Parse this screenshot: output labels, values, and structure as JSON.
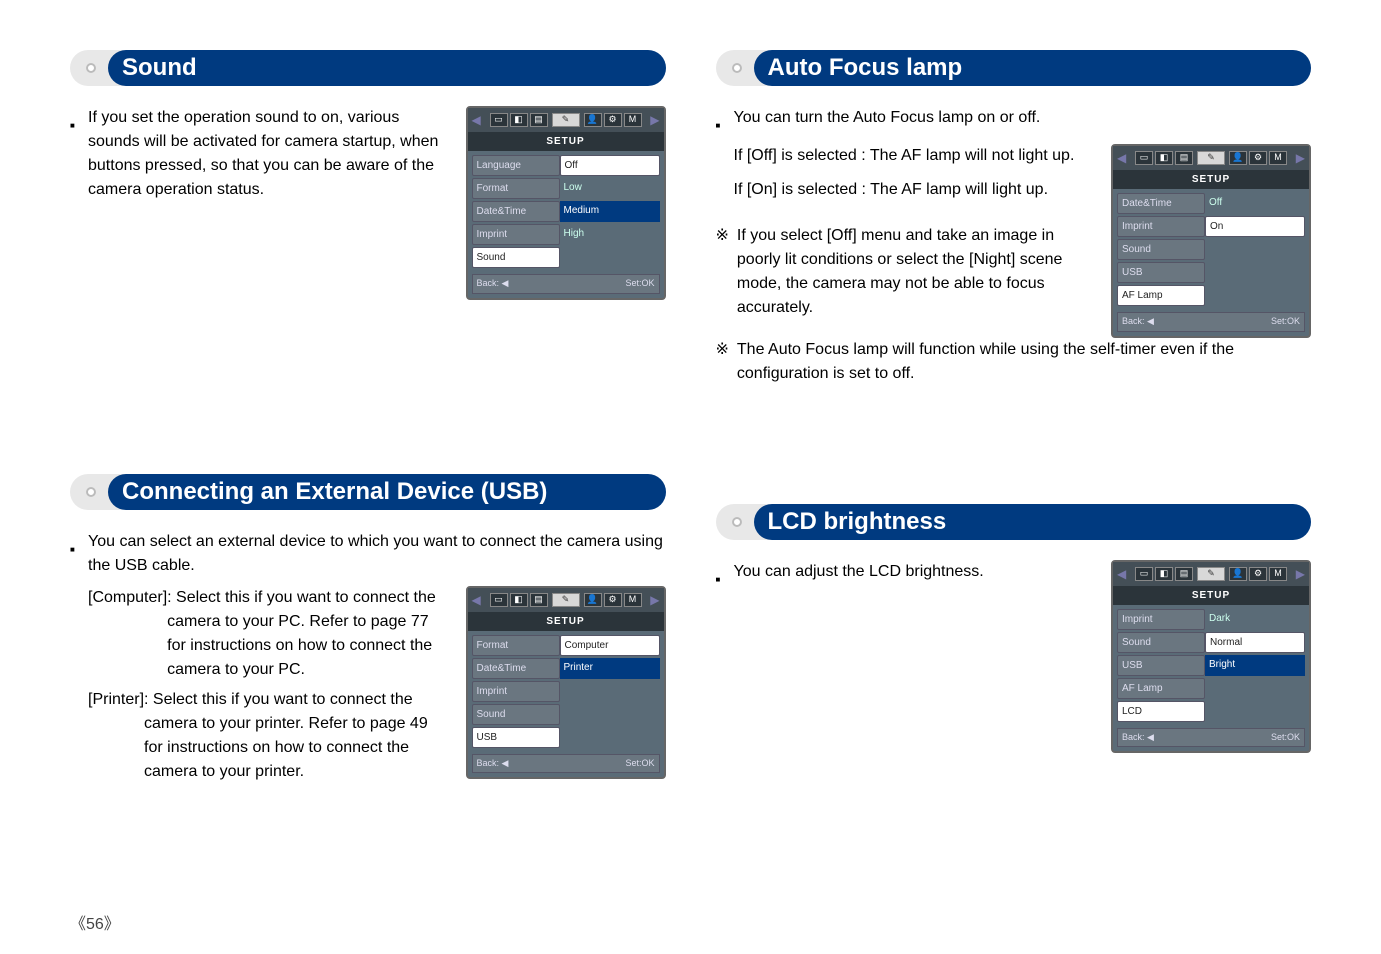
{
  "page_number": "《56》",
  "sections": {
    "sound": {
      "heading": "Sound",
      "bullet": "If you set the operation sound to on, various sounds will be activated for camera startup, when buttons pressed, so that you can be aware of the camera operation status.",
      "menu": {
        "title": "SETUP",
        "back": "Back:",
        "set": "Set:OK",
        "rows": [
          {
            "left": "Language",
            "right": "Off",
            "right_box": true
          },
          {
            "left": "Format",
            "right": "Low"
          },
          {
            "left": "Date&Time",
            "right": "Medium",
            "right_hl": true
          },
          {
            "left": "Imprint",
            "right": "High"
          },
          {
            "left": "Sound",
            "left_sel": true,
            "right": ""
          }
        ]
      }
    },
    "af": {
      "heading": "Auto Focus lamp",
      "bullet": "You can turn the Auto Focus lamp on or off.",
      "off_line": "If [Off] is selected   : The AF lamp will not light up.",
      "on_line": "If [On] is selected   : The AF lamp will light up.",
      "note1": "If you select [Off] menu and take an image in poorly lit conditions or select the [Night] scene mode, the camera may not be able to focus accurately.",
      "note2": "The Auto Focus lamp will function while using the self-timer even if the configuration is set to off.",
      "menu": {
        "title": "SETUP",
        "back": "Back:",
        "set": "Set:OK",
        "rows": [
          {
            "left": "Date&Time",
            "right": "Off"
          },
          {
            "left": "Imprint",
            "right": "On",
            "right_box": true
          },
          {
            "left": "Sound",
            "right": ""
          },
          {
            "left": "USB",
            "right": ""
          },
          {
            "left": "AF Lamp",
            "left_sel": true,
            "right": ""
          }
        ]
      }
    },
    "usb": {
      "heading": "Connecting an External Device (USB)",
      "bullet": "You can select an external device to which you want to connect the camera using the USB cable.",
      "computer_label": "[Computer]",
      "computer_desc": ": Select this if you want to connect the camera to your PC. Refer to page 77 for instructions on how to connect the camera to your PC.",
      "printer_label": "[Printer]",
      "printer_desc": ": Select this if you want to connect the camera to your printer. Refer to page 49 for instructions on how to connect the camera to your printer.",
      "menu": {
        "title": "SETUP",
        "back": "Back:",
        "set": "Set:OK",
        "rows": [
          {
            "left": "Format",
            "right": "Computer",
            "right_box": true
          },
          {
            "left": "Date&Time",
            "right": "Printer",
            "right_hl": true
          },
          {
            "left": "Imprint",
            "right": ""
          },
          {
            "left": "Sound",
            "right": ""
          },
          {
            "left": "USB",
            "left_sel": true,
            "right": ""
          }
        ]
      }
    },
    "lcd": {
      "heading": "LCD brightness",
      "bullet": "You can adjust the LCD brightness.",
      "menu": {
        "title": "SETUP",
        "back": "Back:",
        "set": "Set:OK",
        "rows": [
          {
            "left": "Imprint",
            "right": "Dark"
          },
          {
            "left": "Sound",
            "right": "Normal",
            "right_box": true
          },
          {
            "left": "USB",
            "right": "Bright",
            "right_hl": true
          },
          {
            "left": "AF Lamp",
            "right": ""
          },
          {
            "left": "LCD",
            "left_sel": true,
            "right": ""
          }
        ]
      }
    }
  },
  "menu_icons": {
    "tabs_left": [
      "▭",
      "◧",
      "▤"
    ],
    "wrench": "✎",
    "tabs_right": [
      "👤",
      "⚙",
      "M"
    ],
    "arrow_left": "◀",
    "arrow_right": "▶",
    "back_arrow": "◀"
  },
  "note_mark": "※"
}
